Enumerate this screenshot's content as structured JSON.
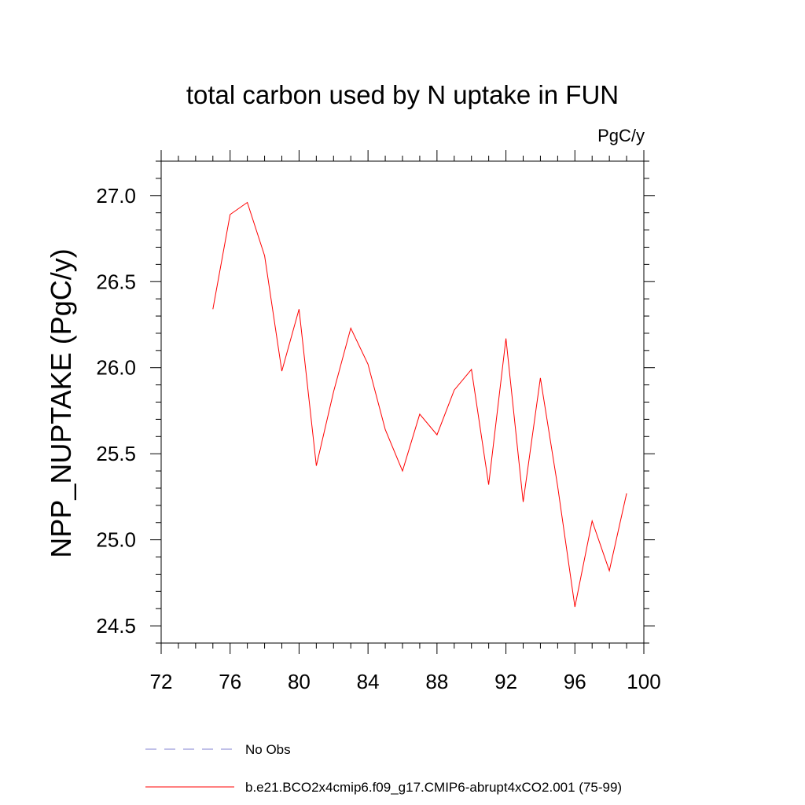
{
  "chart_data": {
    "type": "line",
    "title": "total carbon used by N uptake in FUN",
    "units_label": "PgC/y",
    "ylabel": "NPP_NUPTAKE  (PgC/y)",
    "xlabel": "",
    "xlim": [
      72,
      100
    ],
    "ylim": [
      24.4,
      27.2
    ],
    "xticks": [
      72,
      76,
      80,
      84,
      88,
      92,
      96,
      100
    ],
    "xtick_labels": [
      "72",
      "76",
      "80",
      "84",
      "88",
      "92",
      "96",
      "100"
    ],
    "yticks": [
      24.5,
      25.0,
      25.5,
      26.0,
      26.5,
      27.0
    ],
    "ytick_labels": [
      "24.5",
      "25.0",
      "25.5",
      "26.0",
      "26.5",
      "27.0"
    ],
    "grid": false,
    "series": [
      {
        "name": "b.e21.BCO2x4cmip6.f09_g17.CMIP6-abrupt4xCO2.001 (75-99)",
        "color": "#ff0000",
        "x": [
          75,
          76,
          77,
          78,
          79,
          80,
          81,
          82,
          83,
          84,
          85,
          86,
          87,
          88,
          89,
          90,
          91,
          92,
          93,
          94,
          95,
          96,
          97,
          98,
          99
        ],
        "y": [
          26.34,
          26.89,
          26.96,
          26.65,
          25.98,
          26.34,
          25.43,
          25.86,
          26.23,
          26.02,
          25.64,
          25.4,
          25.73,
          25.61,
          25.87,
          25.99,
          25.32,
          26.17,
          25.22,
          25.94,
          25.31,
          24.61,
          25.11,
          24.82,
          25.27
        ]
      }
    ],
    "legend": {
      "placement": "bottom",
      "entries": [
        {
          "label": "No Obs",
          "color": "#8080d0",
          "style": "dashed"
        },
        {
          "label": "b.e21.BCO2x4cmip6.f09_g17.CMIP6-abrupt4xCO2.001 (75-99)",
          "color": "#ff0000",
          "style": "solid"
        }
      ]
    }
  }
}
